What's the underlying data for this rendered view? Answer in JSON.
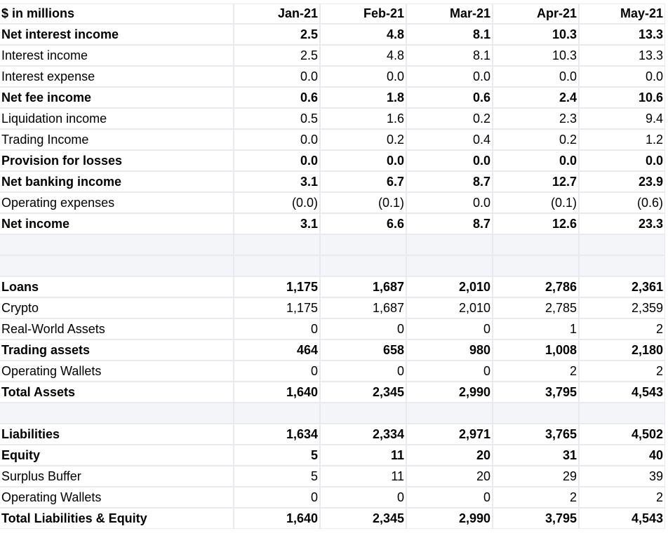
{
  "header": {
    "label": "$ in millions",
    "months": [
      "Jan-21",
      "Feb-21",
      "Mar-21",
      "Apr-21",
      "May-21"
    ]
  },
  "income_statement": [
    {
      "label": "Net interest income",
      "bold": true,
      "values": [
        "2.5",
        "4.8",
        "8.1",
        "10.3",
        "13.3"
      ]
    },
    {
      "label": "Interest income",
      "bold": false,
      "values": [
        "2.5",
        "4.8",
        "8.1",
        "10.3",
        "13.3"
      ]
    },
    {
      "label": "Interest expense",
      "bold": false,
      "values": [
        "0.0",
        "0.0",
        "0.0",
        "0.0",
        "0.0"
      ]
    },
    {
      "label": "Net fee income",
      "bold": true,
      "values": [
        "0.6",
        "1.8",
        "0.6",
        "2.4",
        "10.6"
      ]
    },
    {
      "label": "Liquidation income",
      "bold": false,
      "values": [
        "0.5",
        "1.6",
        "0.2",
        "2.3",
        "9.4"
      ]
    },
    {
      "label": "Trading Income",
      "bold": false,
      "values": [
        "0.0",
        "0.2",
        "0.4",
        "0.2",
        "1.2"
      ]
    },
    {
      "label": "Provision for losses",
      "bold": true,
      "values": [
        "0.0",
        "0.0",
        "0.0",
        "0.0",
        "0.0"
      ]
    },
    {
      "label": "Net banking income",
      "bold": true,
      "values": [
        "3.1",
        "6.7",
        "8.7",
        "12.7",
        "23.9"
      ]
    },
    {
      "label": "Operating expenses",
      "bold": false,
      "values": [
        "(0.0)",
        "(0.1)",
        "0.0",
        "(0.1)",
        "(0.6)"
      ]
    },
    {
      "label": "Net income",
      "bold": true,
      "values": [
        "3.1",
        "6.6",
        "8.7",
        "12.6",
        "23.3"
      ]
    }
  ],
  "assets": [
    {
      "label": "Loans",
      "bold": true,
      "values": [
        "1,175",
        "1,687",
        "2,010",
        "2,786",
        "2,361"
      ]
    },
    {
      "label": "Crypto",
      "bold": false,
      "values": [
        "1,175",
        "1,687",
        "2,010",
        "2,785",
        "2,359"
      ]
    },
    {
      "label": "Real-World Assets",
      "bold": false,
      "values": [
        "0",
        "0",
        "0",
        "1",
        "2"
      ]
    },
    {
      "label": "Trading assets",
      "bold": true,
      "values": [
        "464",
        "658",
        "980",
        "1,008",
        "2,180"
      ]
    },
    {
      "label": "Operating Wallets",
      "bold": false,
      "values": [
        "0",
        "0",
        "0",
        "2",
        "2"
      ]
    },
    {
      "label": "Total Assets",
      "bold": true,
      "values": [
        "1,640",
        "2,345",
        "2,990",
        "3,795",
        "4,543"
      ]
    }
  ],
  "liabilities": [
    {
      "label": "Liabilities",
      "bold": true,
      "values": [
        "1,634",
        "2,334",
        "2,971",
        "3,765",
        "4,502"
      ]
    },
    {
      "label": "Equity",
      "bold": true,
      "values": [
        "5",
        "11",
        "20",
        "31",
        "40"
      ]
    },
    {
      "label": "Surplus Buffer",
      "bold": false,
      "values": [
        "5",
        "11",
        "20",
        "29",
        "39"
      ]
    },
    {
      "label": "Operating Wallets",
      "bold": false,
      "values": [
        "0",
        "0",
        "0",
        "2",
        "2"
      ]
    },
    {
      "label": "Total Liabilities & Equity",
      "bold": true,
      "values": [
        "1,640",
        "2,345",
        "2,990",
        "3,795",
        "4,543"
      ]
    }
  ]
}
